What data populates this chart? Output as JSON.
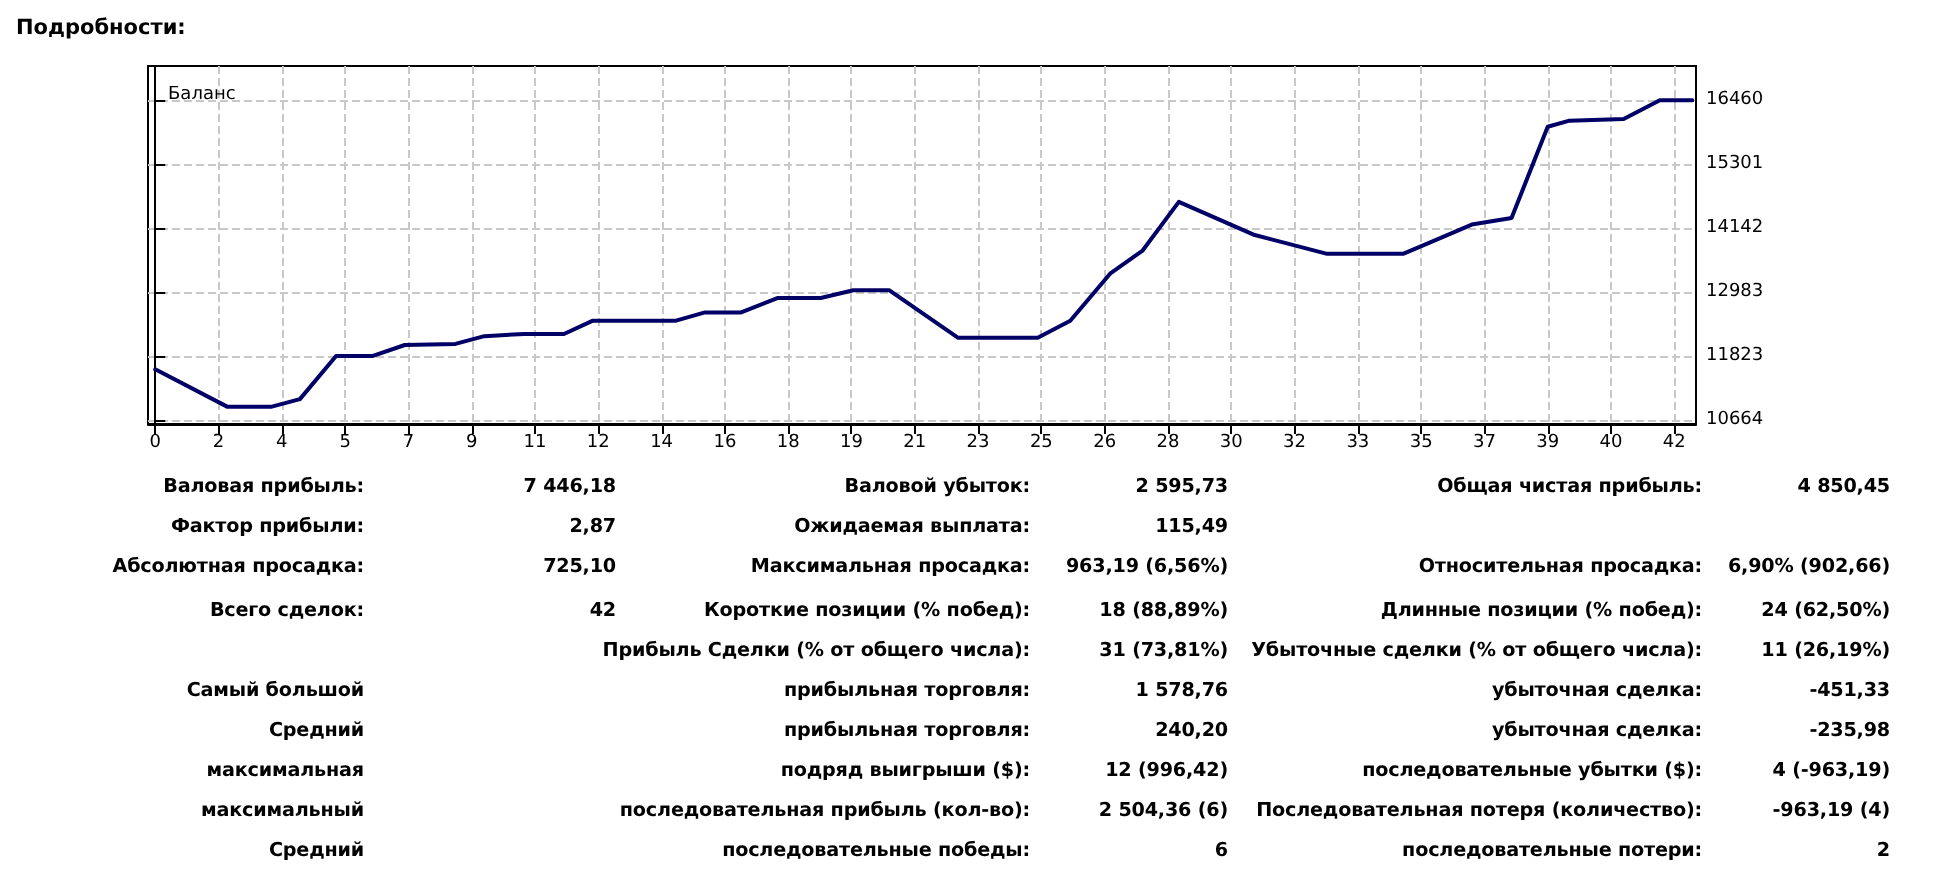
{
  "chart_data": {
    "type": "line",
    "title": "Подробности:",
    "subtitle": "Баланс",
    "x": [
      0,
      2,
      3.2,
      4,
      5,
      6,
      6.9,
      8.3,
      9.1,
      10.2,
      11.3,
      12.1,
      14.4,
      15.2,
      16.2,
      17.2,
      18.4,
      19.3,
      20.3,
      22.2,
      24.4,
      25.3,
      26.4,
      27.3,
      28.3,
      30.4,
      32.4,
      34.5,
      35.3,
      36.4,
      37.5,
      38.5,
      39.1,
      40.6,
      41.6,
      42.5
    ],
    "series": [
      {
        "color": "#000066",
        "values": [
          11590,
          10910,
          10910,
          11050,
          11830,
          11830,
          12030,
          12050,
          12190,
          12230,
          12230,
          12470,
          12470,
          12620,
          12620,
          12880,
          12880,
          13020,
          13020,
          12160,
          12160,
          12470,
          13320,
          13740,
          14620,
          14020,
          13680,
          13680,
          13900,
          14210,
          14330,
          15980,
          16090,
          16120,
          16460,
          16460
        ]
      }
    ],
    "xlim": [
      -0.2,
      42.6
    ],
    "ylim": [
      10600,
      17080
    ],
    "xticks": [
      0,
      {
        "value": 1.75,
        "label": "2"
      },
      {
        "value": 3.5,
        "label": "4"
      },
      {
        "value": 5.25,
        "label": "5"
      },
      7,
      {
        "value": 8.75,
        "label": "9"
      },
      {
        "value": 10.5,
        "label": "11"
      },
      {
        "value": 12.25,
        "label": "12"
      },
      14,
      {
        "value": 15.75,
        "label": "16"
      },
      {
        "value": 17.5,
        "label": "18"
      },
      {
        "value": 19.25,
        "label": "19"
      },
      21,
      {
        "value": 22.75,
        "label": "23"
      },
      {
        "value": 24.5,
        "label": "25"
      },
      {
        "value": 26.25,
        "label": "26"
      },
      28,
      {
        "value": 29.75,
        "label": "30"
      },
      {
        "value": 31.5,
        "label": "32"
      },
      {
        "value": 33.25,
        "label": "33"
      },
      35,
      {
        "value": 36.75,
        "label": "37"
      },
      {
        "value": 38.5,
        "label": "39"
      },
      {
        "value": 40.25,
        "label": "40"
      },
      42
    ],
    "yticks": [
      10664,
      11823,
      12983,
      14142,
      15301,
      16460
    ],
    "grid": true,
    "marker": "none",
    "line_style": "solid",
    "annotations": [
      "Валовая прибыль:",
      "7 446,18",
      "Валовой убыток:",
      "2 595,73",
      "Общая чистая прибыль:",
      "4 850,45",
      "Фактор прибыли:",
      "2,87",
      "Ожидаемая выплата:",
      "115,49",
      "Абсолютная просадка:",
      "725,10",
      "Максимальная просадка:",
      "963,19 (6,56%)",
      "Относительная просадка:",
      "6,90% (902,66)",
      "Всего сделок:",
      "42",
      "Короткие позиции (% побед):",
      "18 (88,89%)",
      "Длинные позиции (% побед):",
      "24 (62,50%)",
      "Прибыль Сделки (% от общего числа):",
      "31 (73,81%)",
      "Убыточные сделки (% от общего числа):",
      "11 (26,19%)",
      "Самый большой",
      "прибыльная торговля:",
      "1 578,76",
      "убыточная сделка:",
      "-451,33",
      "Средний",
      "прибыльная торговля:",
      "240,20",
      "убыточная сделка:",
      "-235,98",
      "максимальная",
      "подряд выигрыши ($):",
      "12 (996,42)",
      "последовательные убытки ($):",
      "4 (-963,19)",
      "максимальный",
      "последовательная прибыль (кол-во):",
      "2 504,36 (6)",
      "Последовательная потеря (количество):",
      "-963,19 (4)",
      "Средний",
      "последовательные победы:",
      "6",
      "последовательные потери:",
      "2"
    ]
  }
}
